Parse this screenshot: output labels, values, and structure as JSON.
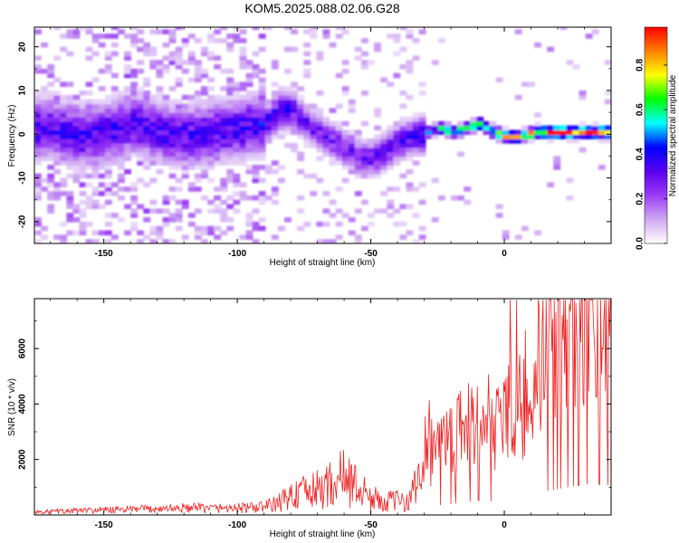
{
  "chart_data": [
    {
      "type": "heatmap",
      "title": "KOM5.2025.088.02.06.G28",
      "xlabel": "Height of straight line (km)",
      "ylabel": "Frequency (Hz)",
      "xlim": [
        -176,
        40
      ],
      "ylim": [
        -25,
        24.5
      ],
      "xticks": [
        -150,
        -100,
        -50,
        0
      ],
      "yticks": [
        -20,
        -10,
        0,
        10,
        20
      ],
      "colorbar": {
        "label": "Normalized spectral amplitude",
        "range": [
          0,
          0.97
        ],
        "ticks": [
          0.0,
          0.2,
          0.4,
          0.6,
          0.8
        ],
        "colors": [
          "#ffffff",
          "#cfa8f2",
          "#9a3cf5",
          "#5a00f0",
          "#0000ff",
          "#00ffff",
          "#00ff00",
          "#ffff00",
          "#ff8000",
          "#ff0000"
        ]
      },
      "ridge": {
        "x": [
          -170,
          -160,
          -150,
          -140,
          -130,
          -120,
          -110,
          -100,
          -90,
          -85,
          -80,
          -75,
          -70,
          -65,
          -60,
          -55,
          -50,
          -45,
          -40,
          -35,
          -30,
          -25,
          -20,
          -15,
          -10,
          -5,
          0,
          5,
          10,
          15,
          20,
          30,
          40
        ],
        "freq": [
          1,
          -1,
          0,
          2,
          0,
          -1,
          0,
          1,
          2,
          5,
          5,
          2,
          0,
          -2,
          -4,
          -6,
          -6,
          -4,
          -2,
          -1,
          0,
          1,
          0,
          1,
          2,
          0,
          -1,
          -1,
          0,
          0,
          0,
          0,
          0
        ],
        "amplitude": [
          0.35,
          0.35,
          0.35,
          0.35,
          0.35,
          0.35,
          0.35,
          0.35,
          0.38,
          0.42,
          0.32,
          0.3,
          0.28,
          0.28,
          0.28,
          0.28,
          0.3,
          0.3,
          0.32,
          0.35,
          0.42,
          0.55,
          0.62,
          0.65,
          0.68,
          0.7,
          0.75,
          0.78,
          0.82,
          0.85,
          0.95,
          0.95,
          0.95
        ]
      }
    },
    {
      "type": "line",
      "xlabel": "Height of straight line (km)",
      "ylabel": "SNR (10 * v/v)",
      "xlim": [
        -176,
        40
      ],
      "ylim": [
        0,
        7800
      ],
      "xticks": [
        -150,
        -100,
        -50,
        0
      ],
      "yticks": [
        2000,
        4000,
        6000
      ],
      "color": "#ee2222",
      "x": [
        -176,
        -160,
        -140,
        -120,
        -100,
        -95,
        -90,
        -85,
        -80,
        -75,
        -70,
        -65,
        -60,
        -55,
        -50,
        -45,
        -40,
        -35,
        -32,
        -30,
        -28,
        -25,
        -22,
        -20,
        -18,
        -15,
        -12,
        -10,
        -5,
        0,
        5,
        10,
        15,
        20,
        25,
        30,
        35,
        40
      ],
      "y": [
        100,
        150,
        200,
        250,
        250,
        250,
        300,
        400,
        700,
        800,
        900,
        1100,
        1400,
        1000,
        600,
        500,
        500,
        600,
        1200,
        2500,
        2200,
        2400,
        2400,
        2600,
        2800,
        3000,
        3200,
        3500,
        3300,
        3600,
        4200,
        4800,
        5600,
        6200,
        6800,
        7300,
        7400,
        7100
      ]
    }
  ]
}
